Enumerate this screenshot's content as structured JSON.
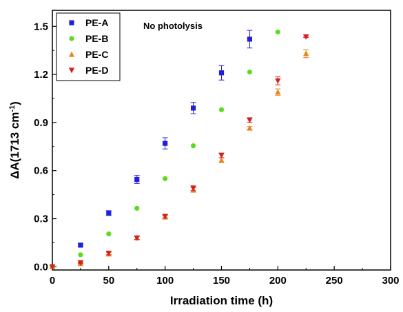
{
  "chart_data": {
    "type": "scatter",
    "annotation": "No photolysis",
    "xlabel": "Irradiation time (h)",
    "ylabel_prefix": "ΔA(1713 cm",
    "ylabel_sup": "-1",
    "ylabel_suffix": ")",
    "xlim": [
      0,
      300
    ],
    "ylim": [
      -0.02,
      1.6
    ],
    "xticks": [
      0,
      50,
      100,
      150,
      200,
      250,
      300
    ],
    "yticks": [
      0.0,
      0.3,
      0.6,
      0.9,
      1.2,
      1.5
    ],
    "ytick_labels": [
      "0.0",
      "0.3",
      "0.6",
      "0.9",
      "1.2",
      "1.5"
    ],
    "grid": false,
    "legend_position": "top-left",
    "series": [
      {
        "name": "PE-A",
        "marker": "square",
        "color": "#1f1fe0",
        "points": [
          {
            "x": 0,
            "y": 0.0,
            "err": 0.0
          },
          {
            "x": 25,
            "y": 0.135,
            "err": 0.01
          },
          {
            "x": 50,
            "y": 0.335,
            "err": 0.015
          },
          {
            "x": 75,
            "y": 0.545,
            "err": 0.025
          },
          {
            "x": 100,
            "y": 0.77,
            "err": 0.035
          },
          {
            "x": 125,
            "y": 0.99,
            "err": 0.035
          },
          {
            "x": 150,
            "y": 1.21,
            "err": 0.045
          },
          {
            "x": 175,
            "y": 1.42,
            "err": 0.055
          }
        ]
      },
      {
        "name": "PE-B",
        "marker": "circle",
        "color": "#5ddc1e",
        "points": [
          {
            "x": 0,
            "y": 0.0,
            "err": 0.0
          },
          {
            "x": 25,
            "y": 0.075,
            "err": 0.0
          },
          {
            "x": 50,
            "y": 0.205,
            "err": 0.0
          },
          {
            "x": 75,
            "y": 0.365,
            "err": 0.0
          },
          {
            "x": 100,
            "y": 0.55,
            "err": 0.0
          },
          {
            "x": 125,
            "y": 0.755,
            "err": 0.0
          },
          {
            "x": 150,
            "y": 0.98,
            "err": 0.0
          },
          {
            "x": 175,
            "y": 1.215,
            "err": 0.0
          },
          {
            "x": 200,
            "y": 1.465,
            "err": 0.0
          }
        ]
      },
      {
        "name": "PE-C",
        "marker": "triangle-up",
        "color": "#e8871e",
        "points": [
          {
            "x": 0,
            "y": 0.0,
            "err": 0.0
          },
          {
            "x": 25,
            "y": 0.02,
            "err": 0.005
          },
          {
            "x": 50,
            "y": 0.08,
            "err": 0.01
          },
          {
            "x": 75,
            "y": 0.18,
            "err": 0.01
          },
          {
            "x": 100,
            "y": 0.31,
            "err": 0.01
          },
          {
            "x": 125,
            "y": 0.48,
            "err": 0.015
          },
          {
            "x": 150,
            "y": 0.665,
            "err": 0.015
          },
          {
            "x": 175,
            "y": 0.865,
            "err": 0.01
          },
          {
            "x": 200,
            "y": 1.09,
            "err": 0.02
          },
          {
            "x": 225,
            "y": 1.33,
            "err": 0.025
          }
        ]
      },
      {
        "name": "PE-D",
        "marker": "triangle-down",
        "color": "#d42020",
        "points": [
          {
            "x": 0,
            "y": 0.0,
            "err": 0.0
          },
          {
            "x": 25,
            "y": 0.025,
            "err": 0.005
          },
          {
            "x": 50,
            "y": 0.085,
            "err": 0.01
          },
          {
            "x": 75,
            "y": 0.18,
            "err": 0.01
          },
          {
            "x": 100,
            "y": 0.315,
            "err": 0.01
          },
          {
            "x": 125,
            "y": 0.49,
            "err": 0.015
          },
          {
            "x": 150,
            "y": 0.695,
            "err": 0.015
          },
          {
            "x": 175,
            "y": 0.915,
            "err": 0.015
          },
          {
            "x": 200,
            "y": 1.16,
            "err": 0.025
          },
          {
            "x": 225,
            "y": 1.435,
            "err": 0.005
          }
        ]
      }
    ]
  }
}
